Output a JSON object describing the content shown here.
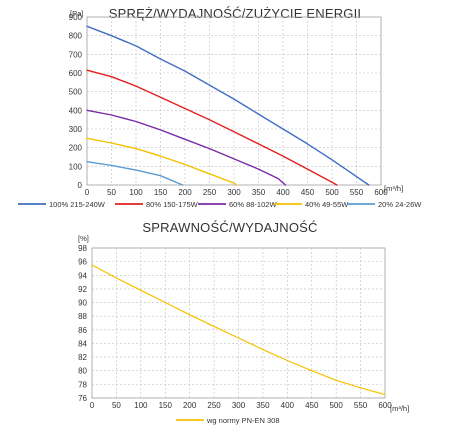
{
  "chart_data": [
    {
      "type": "line",
      "title": "SPRĘŻ/WYDAJNOŚĆ/ZUŻYCIE ENERGII",
      "ylabel": "[Pa]",
      "xlabel": "[m³/h]",
      "xlim": [
        0,
        600
      ],
      "ylim": [
        0,
        900
      ],
      "x_ticks": [
        "0",
        "50",
        "100",
        "150",
        "200",
        "250",
        "300",
        "350",
        "400",
        "450",
        "500",
        "550",
        "600"
      ],
      "y_ticks": [
        "0",
        "100",
        "200",
        "300",
        "400",
        "500",
        "600",
        "700",
        "800",
        "900"
      ],
      "grid": true,
      "legend_position": "bottom",
      "series": [
        {
          "name": "100% 215-240W",
          "color": "#3f6fc1",
          "points": [
            [
              0,
              850
            ],
            [
              50,
              800
            ],
            [
              100,
              745
            ],
            [
              150,
              675
            ],
            [
              200,
              610
            ],
            [
              250,
              535
            ],
            [
              300,
              460
            ],
            [
              350,
              380
            ],
            [
              400,
              300
            ],
            [
              450,
              220
            ],
            [
              500,
              135
            ],
            [
              550,
              45
            ],
            [
              575,
              0
            ]
          ]
        },
        {
          "name": "80% 150-175W",
          "color": "#e02020",
          "points": [
            [
              0,
              615
            ],
            [
              50,
              580
            ],
            [
              100,
              530
            ],
            [
              150,
              470
            ],
            [
              200,
              410
            ],
            [
              250,
              350
            ],
            [
              300,
              285
            ],
            [
              350,
              220
            ],
            [
              400,
              155
            ],
            [
              450,
              85
            ],
            [
              500,
              15
            ],
            [
              510,
              0
            ]
          ]
        },
        {
          "name": "60% 88-102W",
          "color": "#7a2aa8",
          "points": [
            [
              0,
              400
            ],
            [
              50,
              375
            ],
            [
              100,
              340
            ],
            [
              150,
              295
            ],
            [
              200,
              245
            ],
            [
              250,
              195
            ],
            [
              300,
              140
            ],
            [
              350,
              85
            ],
            [
              390,
              35
            ],
            [
              405,
              0
            ]
          ]
        },
        {
          "name": "40% 49-55W",
          "color": "#f5c000",
          "points": [
            [
              0,
              250
            ],
            [
              50,
              225
            ],
            [
              100,
              195
            ],
            [
              150,
              155
            ],
            [
              200,
              110
            ],
            [
              250,
              60
            ],
            [
              300,
              10
            ],
            [
              305,
              0
            ]
          ]
        },
        {
          "name": "20% 24-26W",
          "color": "#5b9bd5",
          "points": [
            [
              0,
              125
            ],
            [
              50,
              105
            ],
            [
              100,
              80
            ],
            [
              150,
              50
            ],
            [
              195,
              0
            ]
          ]
        }
      ]
    },
    {
      "type": "line",
      "title": "SPRAWNOŚĆ/WYDAJNOŚĆ",
      "ylabel": "[%]",
      "xlabel": "[m³/h]",
      "xlim": [
        0,
        600
      ],
      "ylim": [
        76,
        98
      ],
      "x_ticks": [
        "0",
        "50",
        "100",
        "150",
        "200",
        "250",
        "300",
        "350",
        "400",
        "450",
        "500",
        "550",
        "600"
      ],
      "y_ticks": [
        "76",
        "78",
        "80",
        "82",
        "84",
        "86",
        "88",
        "90",
        "92",
        "94",
        "96",
        "98"
      ],
      "grid": true,
      "legend_position": "bottom",
      "series": [
        {
          "name": "wg normy PN-EN 308",
          "color": "#f5c000",
          "points": [
            [
              0,
              95.5
            ],
            [
              50,
              93.6
            ],
            [
              100,
              91.8
            ],
            [
              150,
              90.0
            ],
            [
              200,
              88.2
            ],
            [
              250,
              86.5
            ],
            [
              300,
              84.8
            ],
            [
              350,
              83.1
            ],
            [
              400,
              81.5
            ],
            [
              450,
              80.0
            ],
            [
              500,
              78.6
            ],
            [
              550,
              77.5
            ],
            [
              600,
              76.5
            ]
          ]
        }
      ]
    }
  ]
}
